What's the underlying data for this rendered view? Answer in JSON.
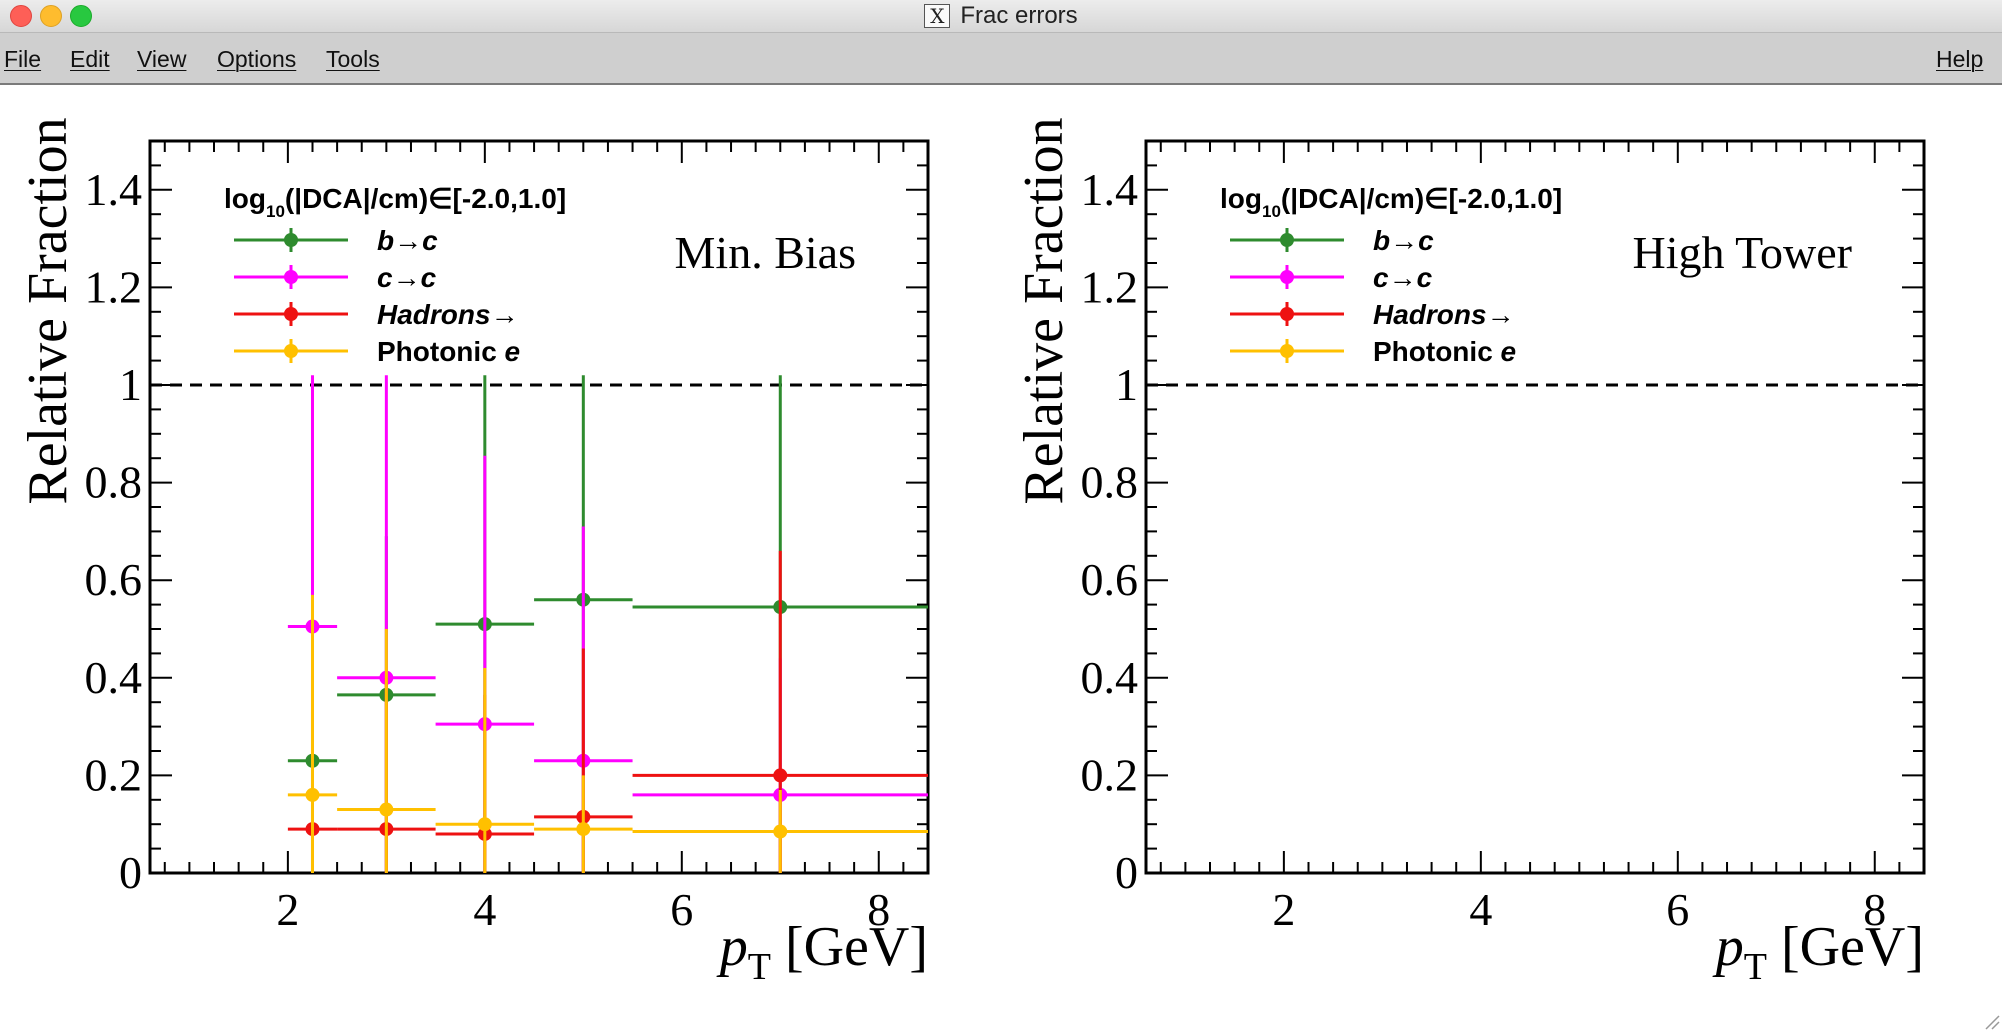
{
  "window": {
    "title": "Frac errors",
    "x_icon": "X"
  },
  "menubar": {
    "file": "File",
    "edit": "Edit",
    "view": "View",
    "options": "Options",
    "tools": "Tools",
    "help": "Help"
  },
  "colors": {
    "b_to_c": "#2e8b2e",
    "c_to_c": "#ff00ff",
    "hadrons": "#ee1111",
    "photonic": "#ffc000"
  },
  "chart_data": [
    {
      "type": "scatter",
      "panel_label": "Min. Bias",
      "ylabel": "Relative Fraction",
      "xlabel_var": "p",
      "xlabel_sub": "T",
      "xlabel_unit": "[GeV]",
      "xlim": [
        0.6,
        8.5
      ],
      "ylim": [
        0,
        1.5
      ],
      "x_ticks": [
        2,
        4,
        6,
        8
      ],
      "y_ticks": [
        0,
        0.2,
        0.4,
        0.6,
        0.8,
        1,
        1.2,
        1.4
      ],
      "y_tick_labels": [
        "0",
        "0.2",
        "0.4",
        "0.6",
        "0.8",
        "1",
        "1.2",
        "1.4"
      ],
      "reference_line_y": 1,
      "legend": {
        "header_pre": "log",
        "header_sub": "10",
        "header_post": "(|DCA|/cm)∈[-2.0,1.0]",
        "position": "top-left"
      },
      "series": [
        {
          "name": "b→c",
          "color_key": "b_to_c",
          "points": [
            {
              "x": 2.25,
              "xlo": 2.0,
              "xhi": 2.5,
              "y": 0.23,
              "ylo": 0.0,
              "yhi": 0.33
            },
            {
              "x": 3.0,
              "xlo": 2.5,
              "xhi": 3.5,
              "y": 0.365,
              "ylo": 0.0,
              "yhi": 0.69
            },
            {
              "x": 4.0,
              "xlo": 3.5,
              "xhi": 4.5,
              "y": 0.51,
              "ylo": 0.0,
              "yhi": 1.02
            },
            {
              "x": 5.0,
              "xlo": 4.5,
              "xhi": 5.5,
              "y": 0.56,
              "ylo": 0.0,
              "yhi": 1.02
            },
            {
              "x": 7.0,
              "xlo": 5.5,
              "xhi": 8.5,
              "y": 0.545,
              "ylo": 0.0,
              "yhi": 1.02
            }
          ]
        },
        {
          "name": "c→c",
          "color_key": "c_to_c",
          "points": [
            {
              "x": 2.25,
              "xlo": 2.0,
              "xhi": 2.5,
              "y": 0.505,
              "ylo": 0.0,
              "yhi": 1.02
            },
            {
              "x": 3.0,
              "xlo": 2.5,
              "xhi": 3.5,
              "y": 0.4,
              "ylo": 0.0,
              "yhi": 1.02
            },
            {
              "x": 4.0,
              "xlo": 3.5,
              "xhi": 4.5,
              "y": 0.305,
              "ylo": 0.0,
              "yhi": 0.855
            },
            {
              "x": 5.0,
              "xlo": 4.5,
              "xhi": 5.5,
              "y": 0.23,
              "ylo": 0.0,
              "yhi": 0.71
            },
            {
              "x": 7.0,
              "xlo": 5.5,
              "xhi": 8.5,
              "y": 0.16,
              "ylo": 0.0,
              "yhi": 0.44
            }
          ]
        },
        {
          "name": "Hadrons",
          "color_key": "hadrons",
          "points": [
            {
              "x": 2.25,
              "xlo": 2.0,
              "xhi": 2.5,
              "y": 0.09,
              "ylo": 0.0,
              "yhi": 0.405
            },
            {
              "x": 3.0,
              "xlo": 2.5,
              "xhi": 3.5,
              "y": 0.09,
              "ylo": 0.0,
              "yhi": 0.4
            },
            {
              "x": 4.0,
              "xlo": 3.5,
              "xhi": 4.5,
              "y": 0.08,
              "ylo": 0.0,
              "yhi": 0.365
            },
            {
              "x": 5.0,
              "xlo": 4.5,
              "xhi": 5.5,
              "y": 0.115,
              "ylo": 0.0,
              "yhi": 0.46
            },
            {
              "x": 7.0,
              "xlo": 5.5,
              "xhi": 8.5,
              "y": 0.2,
              "ylo": 0.0,
              "yhi": 0.66
            }
          ]
        },
        {
          "name": "Photonic e",
          "name_text": "Photonic",
          "name_italic": "e",
          "color_key": "photonic",
          "points": [
            {
              "x": 2.25,
              "xlo": 2.0,
              "xhi": 2.5,
              "y": 0.16,
              "ylo": 0.0,
              "yhi": 0.57
            },
            {
              "x": 3.0,
              "xlo": 2.5,
              "xhi": 3.5,
              "y": 0.13,
              "ylo": 0.0,
              "yhi": 0.5
            },
            {
              "x": 4.0,
              "xlo": 3.5,
              "xhi": 4.5,
              "y": 0.1,
              "ylo": 0.0,
              "yhi": 0.42
            },
            {
              "x": 5.0,
              "xlo": 4.5,
              "xhi": 5.5,
              "y": 0.09,
              "ylo": 0.0,
              "yhi": 0.2
            },
            {
              "x": 7.0,
              "xlo": 5.5,
              "xhi": 8.5,
              "y": 0.085,
              "ylo": 0.0,
              "yhi": 0.17
            }
          ]
        }
      ]
    },
    {
      "type": "scatter",
      "panel_label": "High Tower",
      "ylabel": "Relative Fraction",
      "xlabel_var": "p",
      "xlabel_sub": "T",
      "xlabel_unit": "[GeV]",
      "xlim": [
        0.6,
        8.5
      ],
      "ylim": [
        0,
        1.5
      ],
      "x_ticks": [
        2,
        4,
        6,
        8
      ],
      "y_ticks": [
        0,
        0.2,
        0.4,
        0.6,
        0.8,
        1,
        1.2,
        1.4
      ],
      "y_tick_labels": [
        "0",
        "0.2",
        "0.4",
        "0.6",
        "0.8",
        "1",
        "1.2",
        "1.4"
      ],
      "reference_line_y": 1,
      "legend": {
        "header_pre": "log",
        "header_sub": "10",
        "header_post": "(|DCA|/cm)∈[-2.0,1.0]",
        "position": "top-left"
      },
      "series": [
        {
          "name": "b→c",
          "color_key": "b_to_c",
          "points": []
        },
        {
          "name": "c→c",
          "color_key": "c_to_c",
          "points": []
        },
        {
          "name": "Hadrons",
          "color_key": "hadrons",
          "points": []
        },
        {
          "name": "Photonic e",
          "name_text": "Photonic",
          "name_italic": "e",
          "color_key": "photonic",
          "points": []
        }
      ]
    }
  ]
}
